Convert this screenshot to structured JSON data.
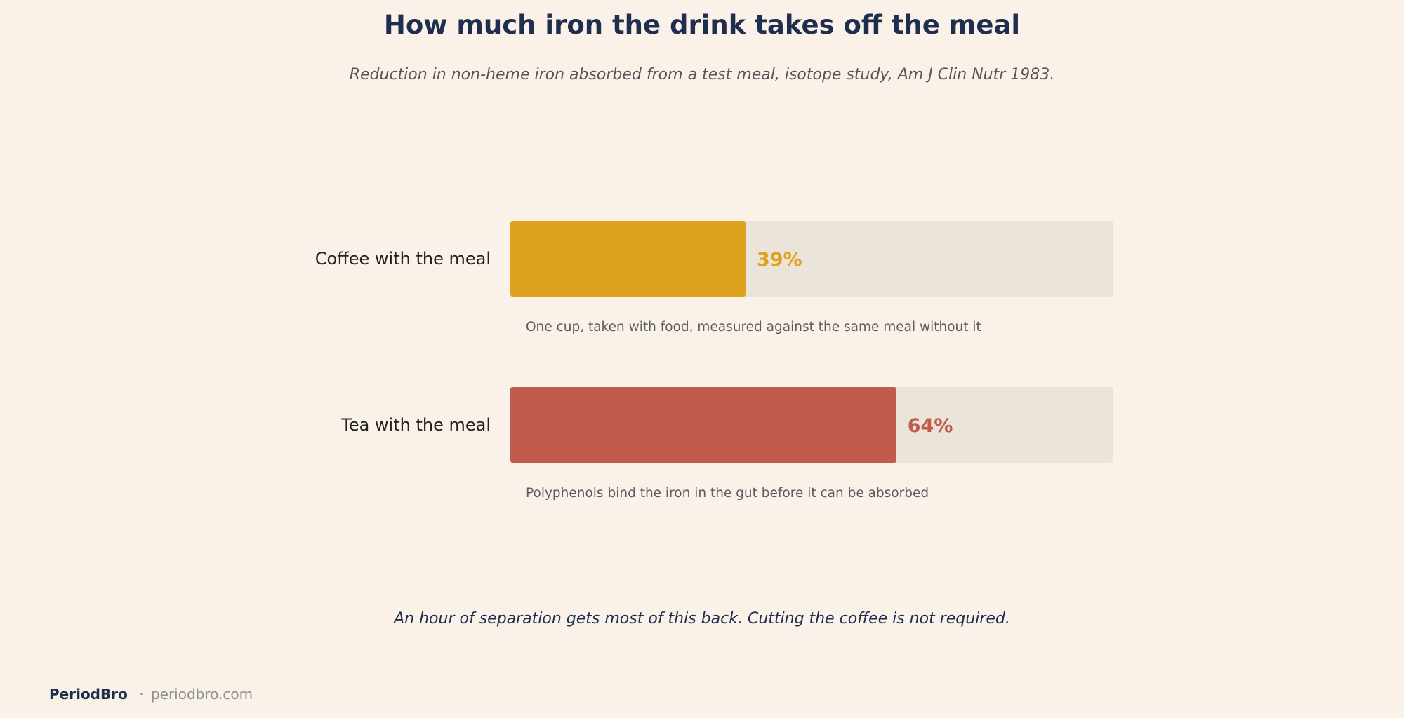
{
  "title": "How much iron the drink takes off the meal",
  "subtitle": "Reduction in non-heme iron absorbed from a test meal, isotope study, Am J Clin Nutr 1983.",
  "takeaway": "An hour of separation gets most of this back. Cutting the coffee is not required.",
  "footer": {
    "brand": "PeriodBro",
    "separator": "·",
    "site": "periodbro.com"
  },
  "chart_data": {
    "type": "bar",
    "orientation": "horizontal",
    "xlim": [
      0,
      100
    ],
    "track_color": "#ebe4da",
    "categories": [
      "Coffee with the meal",
      "Tea with the meal"
    ],
    "values": [
      39,
      64
    ],
    "value_labels": [
      "39%",
      "64%"
    ],
    "notes": [
      "One cup, taken with food, measured against the same meal without it",
      "Polyphenols bind the iron in the gut before it can be absorbed"
    ],
    "colors": [
      "#dfa21f",
      "#c05b4d"
    ]
  }
}
